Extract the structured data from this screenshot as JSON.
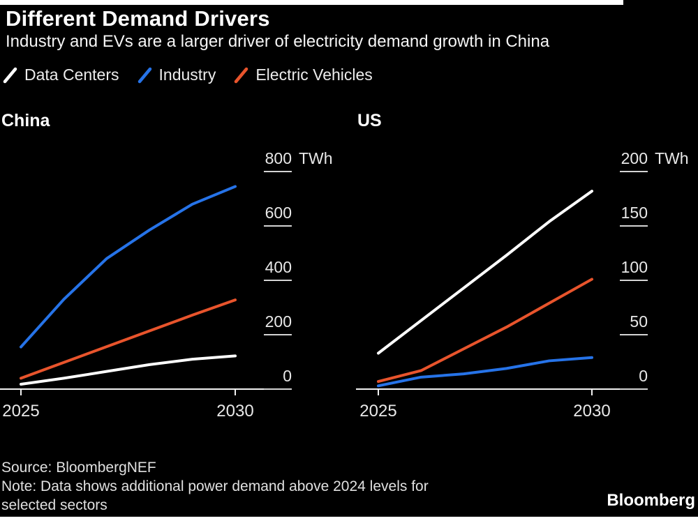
{
  "page": {
    "title": "Different Demand Drivers",
    "subtitle": "Industry and EVs are a larger driver of electricity demand growth in China",
    "source": "Source: BloombergNEF",
    "note_line1": "Note: Data shows additional power demand above 2024 levels for",
    "note_line2": "selected sectors",
    "brand": "Bloomberg"
  },
  "colors": {
    "data_centers": "#ffffff",
    "industry": "#2673e8",
    "electric_vehicles": "#e8542c",
    "axis_line": "#f2f2f2",
    "tick_line": "#d4d4d4",
    "tick_label": "#e8e8e8"
  },
  "legend": [
    {
      "label": "Data Centers",
      "color": "#ffffff"
    },
    {
      "label": "Industry",
      "color": "#2673e8"
    },
    {
      "label": "Electric Vehicles",
      "color": "#e8542c"
    }
  ],
  "chart_data": [
    {
      "type": "line",
      "title": "China",
      "unit": "TWh",
      "x": [
        2025,
        2026,
        2027,
        2028,
        2029,
        2030
      ],
      "x_ticks": [
        2025,
        2030
      ],
      "y_ticks": [
        0,
        200,
        400,
        600,
        800
      ],
      "ylim": [
        0,
        800
      ],
      "grid": false,
      "legend_position": "top",
      "series": [
        {
          "name": "Data Centers",
          "color": "#ffffff",
          "values": [
            18,
            40,
            65,
            90,
            110,
            122
          ]
        },
        {
          "name": "Industry",
          "color": "#2673e8",
          "values": [
            155,
            330,
            480,
            585,
            680,
            745
          ]
        },
        {
          "name": "Electric Vehicles",
          "color": "#e8542c",
          "values": [
            40,
            98,
            156,
            214,
            272,
            328
          ]
        }
      ]
    },
    {
      "type": "line",
      "title": "US",
      "unit": "TWh",
      "x": [
        2025,
        2026,
        2027,
        2028,
        2029,
        2030
      ],
      "x_ticks": [
        2025,
        2030
      ],
      "y_ticks": [
        0,
        50,
        100,
        150,
        200
      ],
      "ylim": [
        0,
        200
      ],
      "grid": false,
      "legend_position": "top",
      "series": [
        {
          "name": "Data Centers",
          "color": "#ffffff",
          "values": [
            33,
            63,
            93,
            123,
            154,
            182
          ]
        },
        {
          "name": "Industry",
          "color": "#2673e8",
          "values": [
            3,
            11,
            14,
            19,
            26,
            29
          ]
        },
        {
          "name": "Electric Vehicles",
          "color": "#e8542c",
          "values": [
            7,
            17,
            37,
            57,
            79,
            101
          ]
        }
      ]
    }
  ]
}
